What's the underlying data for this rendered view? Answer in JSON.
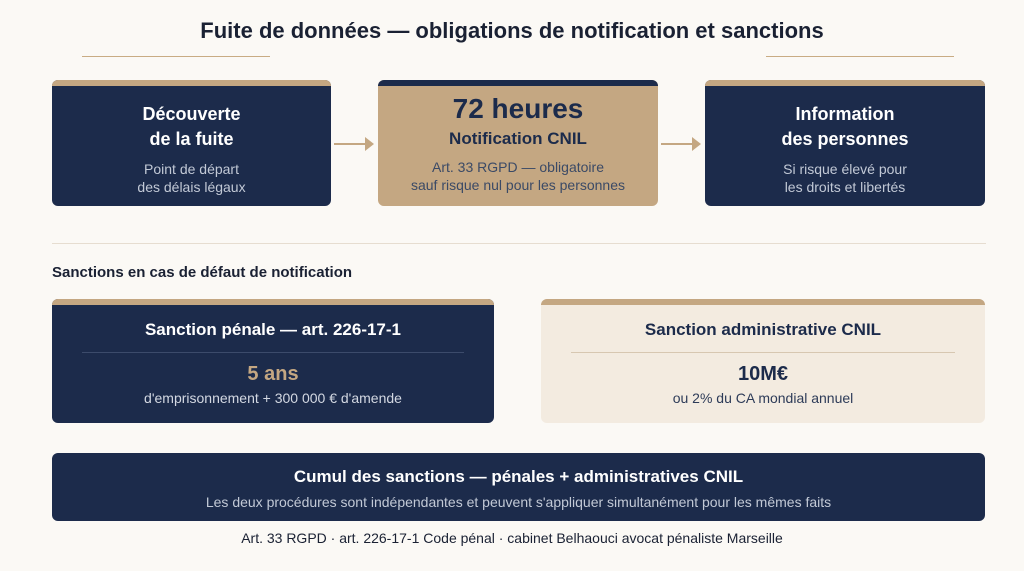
{
  "title": "Fuite de données — obligations de notification et sanctions",
  "steps": [
    {
      "title_line1": "Découverte",
      "title_line2": "de la fuite",
      "sub_line1": "Point de départ",
      "sub_line2": "des délais légaux"
    },
    {
      "big": "72 heures",
      "title": "Notification CNIL",
      "sub_line1": "Art. 33 RGPD — obligatoire",
      "sub_line2": "sauf risque nul pour les personnes"
    },
    {
      "title_line1": "Information",
      "title_line2": "des personnes",
      "sub_line1": "Si risque élevé pour",
      "sub_line2": "les droits et libertés"
    }
  ],
  "section_label": "Sanctions en cas de défaut de notification",
  "sanctions": [
    {
      "title": "Sanction pénale — art. 226-17-1",
      "value": "5 ans",
      "desc": "d'emprisonnement + 300 000 € d'amende"
    },
    {
      "title": "Sanction administrative CNIL",
      "value": "10M€",
      "desc": "ou 2% du CA mondial annuel"
    }
  ],
  "cumul": {
    "title": "Cumul des sanctions — pénales + administratives CNIL",
    "desc": "Les deux procédures sont indépendantes et peuvent s'appliquer simultanément pour les mêmes faits"
  },
  "footer": "Art. 33 RGPD · art. 226-17-1 Code pénal · cabinet Belhaouci avocat pénaliste Marseille",
  "colors": {
    "navy": "#1c2b4b",
    "gold": "#c4a782",
    "cream": "#f3ebe0",
    "background": "#fbf9f5"
  }
}
